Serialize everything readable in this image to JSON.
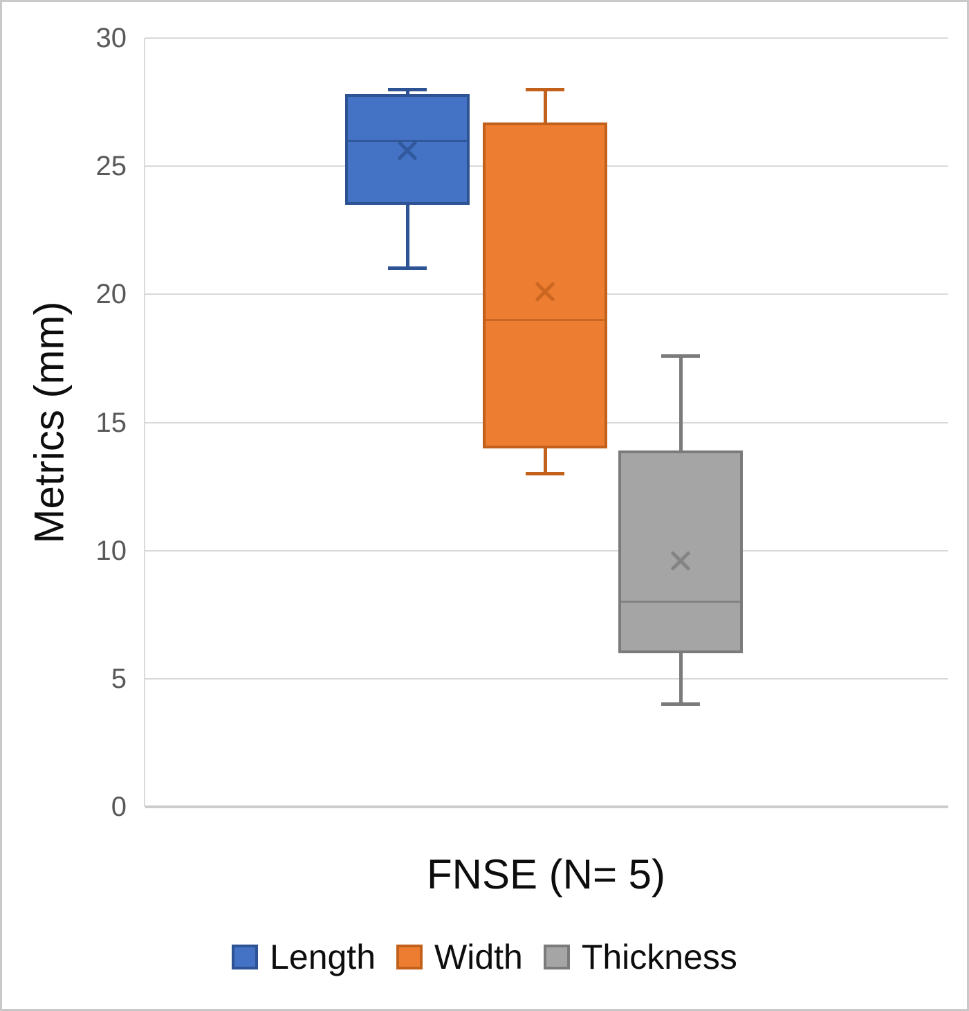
{
  "window": {
    "background": "#ffffff",
    "frame_border_color": "#c9c9c9"
  },
  "chart_data": {
    "type": "boxplot",
    "title": "",
    "xlabel": "FNSE (N= 5)",
    "ylabel": "Metrics (mm)",
    "ylim": [
      0,
      30
    ],
    "yticks": [
      0,
      5,
      10,
      15,
      20,
      25,
      30
    ],
    "grid": "horizontal",
    "gridline_color": "#d9d9d9",
    "axis_line_color": "#cccccc",
    "tick_label_color": "#595959",
    "title_text_color": "#0d0d0d",
    "legend_position": "bottom",
    "categories": [
      "FNSE (N= 5)"
    ],
    "series": [
      {
        "name": "Length",
        "fill": "#4472C4",
        "stroke": "#2D5394",
        "min": 21,
        "q1": 23.5,
        "median": 26,
        "mean": 25.6,
        "q3": 27.8,
        "max": 28
      },
      {
        "name": "Width",
        "fill": "#ED7D31",
        "stroke": "#C2611C",
        "min": 13,
        "q1": 14,
        "median": 19,
        "mean": 20.1,
        "q3": 26.7,
        "max": 28
      },
      {
        "name": "Thickness",
        "fill": "#A5A5A5",
        "stroke": "#7B7B7B",
        "min": 4,
        "q1": 6,
        "median": 8,
        "mean": 9.6,
        "q3": 13.9,
        "max": 17.6
      }
    ],
    "mean_marker": "x",
    "whiskers": true
  }
}
